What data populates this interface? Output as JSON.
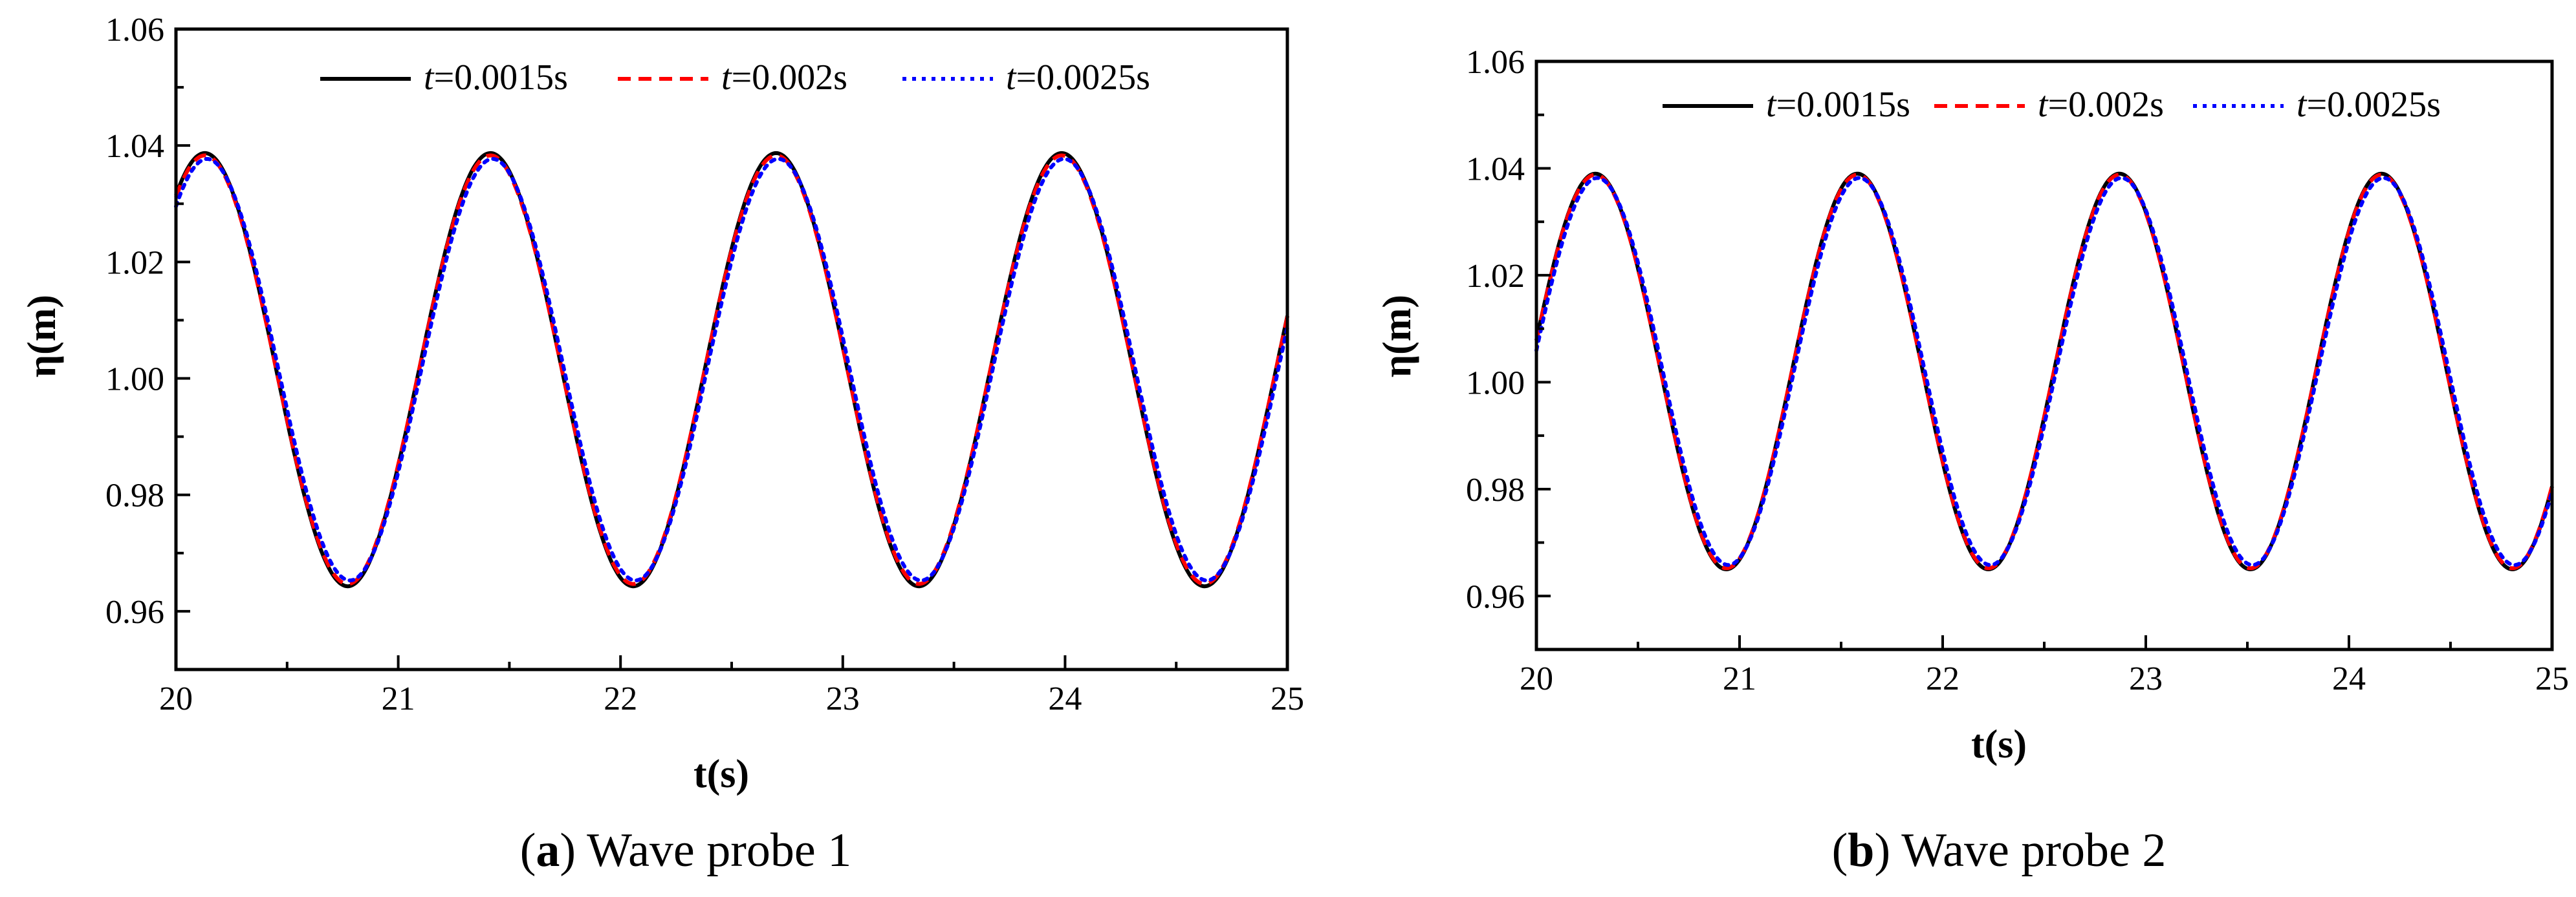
{
  "chart_data": [
    {
      "type": "line",
      "panel_label": "a",
      "caption_text": "Wave probe 1",
      "xlabel": "t(s)",
      "ylabel": "η(m)",
      "xlim": [
        20,
        25
      ],
      "ylim": [
        0.95,
        1.06
      ],
      "xticks": [
        20,
        21,
        22,
        23,
        24,
        25
      ],
      "xtick_labels": [
        "20",
        "21",
        "22",
        "23",
        "24",
        "25"
      ],
      "yticks": [
        0.96,
        0.98,
        1.0,
        1.02,
        1.04,
        1.06
      ],
      "ytick_labels": [
        "0.96",
        "0.98",
        "1.00",
        "1.02",
        "1.04",
        "1.06"
      ],
      "legend": {
        "placement": "top-center",
        "frame": false
      },
      "wave": {
        "mean": 1.0015,
        "period": 1.285,
        "first_crest": 20.13
      },
      "series": [
        {
          "name_prefix": "t",
          "name_suffix": "=0.0015s",
          "color": "#000000",
          "dash": "solid",
          "amplitude": 0.0372,
          "phase_offset": 0.0
        },
        {
          "name_prefix": "t",
          "name_suffix": "=0.002s",
          "color": "#ff0000",
          "dash": "dashed",
          "amplitude": 0.0368,
          "phase_offset": 0.0
        },
        {
          "name_prefix": "t",
          "name_suffix": "=0.0025s",
          "color": "#0000ff",
          "dash": "dotted",
          "amplitude": 0.0362,
          "phase_offset": 0.01
        }
      ]
    },
    {
      "type": "line",
      "panel_label": "b",
      "caption_text": "Wave probe 2",
      "xlabel": "t(s)",
      "ylabel": "η(m)",
      "xlim": [
        20,
        25
      ],
      "ylim": [
        0.95,
        1.06
      ],
      "xticks": [
        20,
        21,
        22,
        23,
        24,
        25
      ],
      "xtick_labels": [
        "20",
        "21",
        "22",
        "23",
        "24",
        "25"
      ],
      "yticks": [
        0.96,
        0.98,
        1.0,
        1.02,
        1.04,
        1.06
      ],
      "ytick_labels": [
        "0.96",
        "0.98",
        "1.00",
        "1.02",
        "1.04",
        "1.06"
      ],
      "legend": {
        "placement": "top-center",
        "frame": false
      },
      "wave": {
        "mean": 1.002,
        "period": 1.29,
        "first_crest": 20.29
      },
      "series": [
        {
          "name_prefix": "t",
          "name_suffix": "=0.0015s",
          "color": "#000000",
          "dash": "solid",
          "amplitude": 0.037,
          "phase_offset": 0.0
        },
        {
          "name_prefix": "t",
          "name_suffix": "=0.002s",
          "color": "#ff0000",
          "dash": "dashed",
          "amplitude": 0.0368,
          "phase_offset": 0.0
        },
        {
          "name_prefix": "t",
          "name_suffix": "=0.0025s",
          "color": "#0000ff",
          "dash": "dotted",
          "amplitude": 0.0362,
          "phase_offset": 0.01
        }
      ]
    }
  ]
}
